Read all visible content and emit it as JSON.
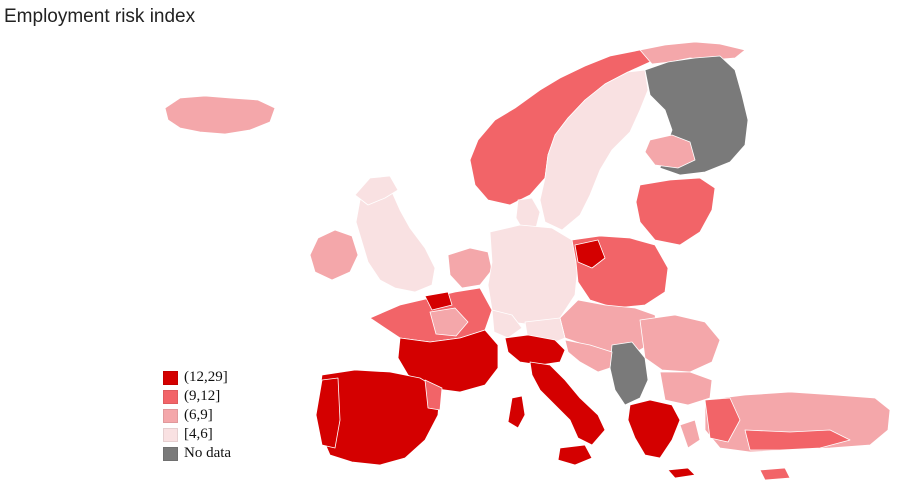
{
  "title": "Employment risk index",
  "legend": [
    {
      "label": "(12,29]",
      "color": "#d40000"
    },
    {
      "label": "(9,12]",
      "color": "#f26468"
    },
    {
      "label": "(6,9]",
      "color": "#f4a7aa"
    },
    {
      "label": "[4,6]",
      "color": "#f9e1e2"
    },
    {
      "label": "No data",
      "color": "#7a7a7a"
    }
  ],
  "colors": {
    "c12_29": "#d40000",
    "c9_12": "#f26468",
    "c6_9": "#f4a7aa",
    "c4_6": "#f9e1e2",
    "nodata": "#7a7a7a",
    "border": "#ffffff"
  }
}
